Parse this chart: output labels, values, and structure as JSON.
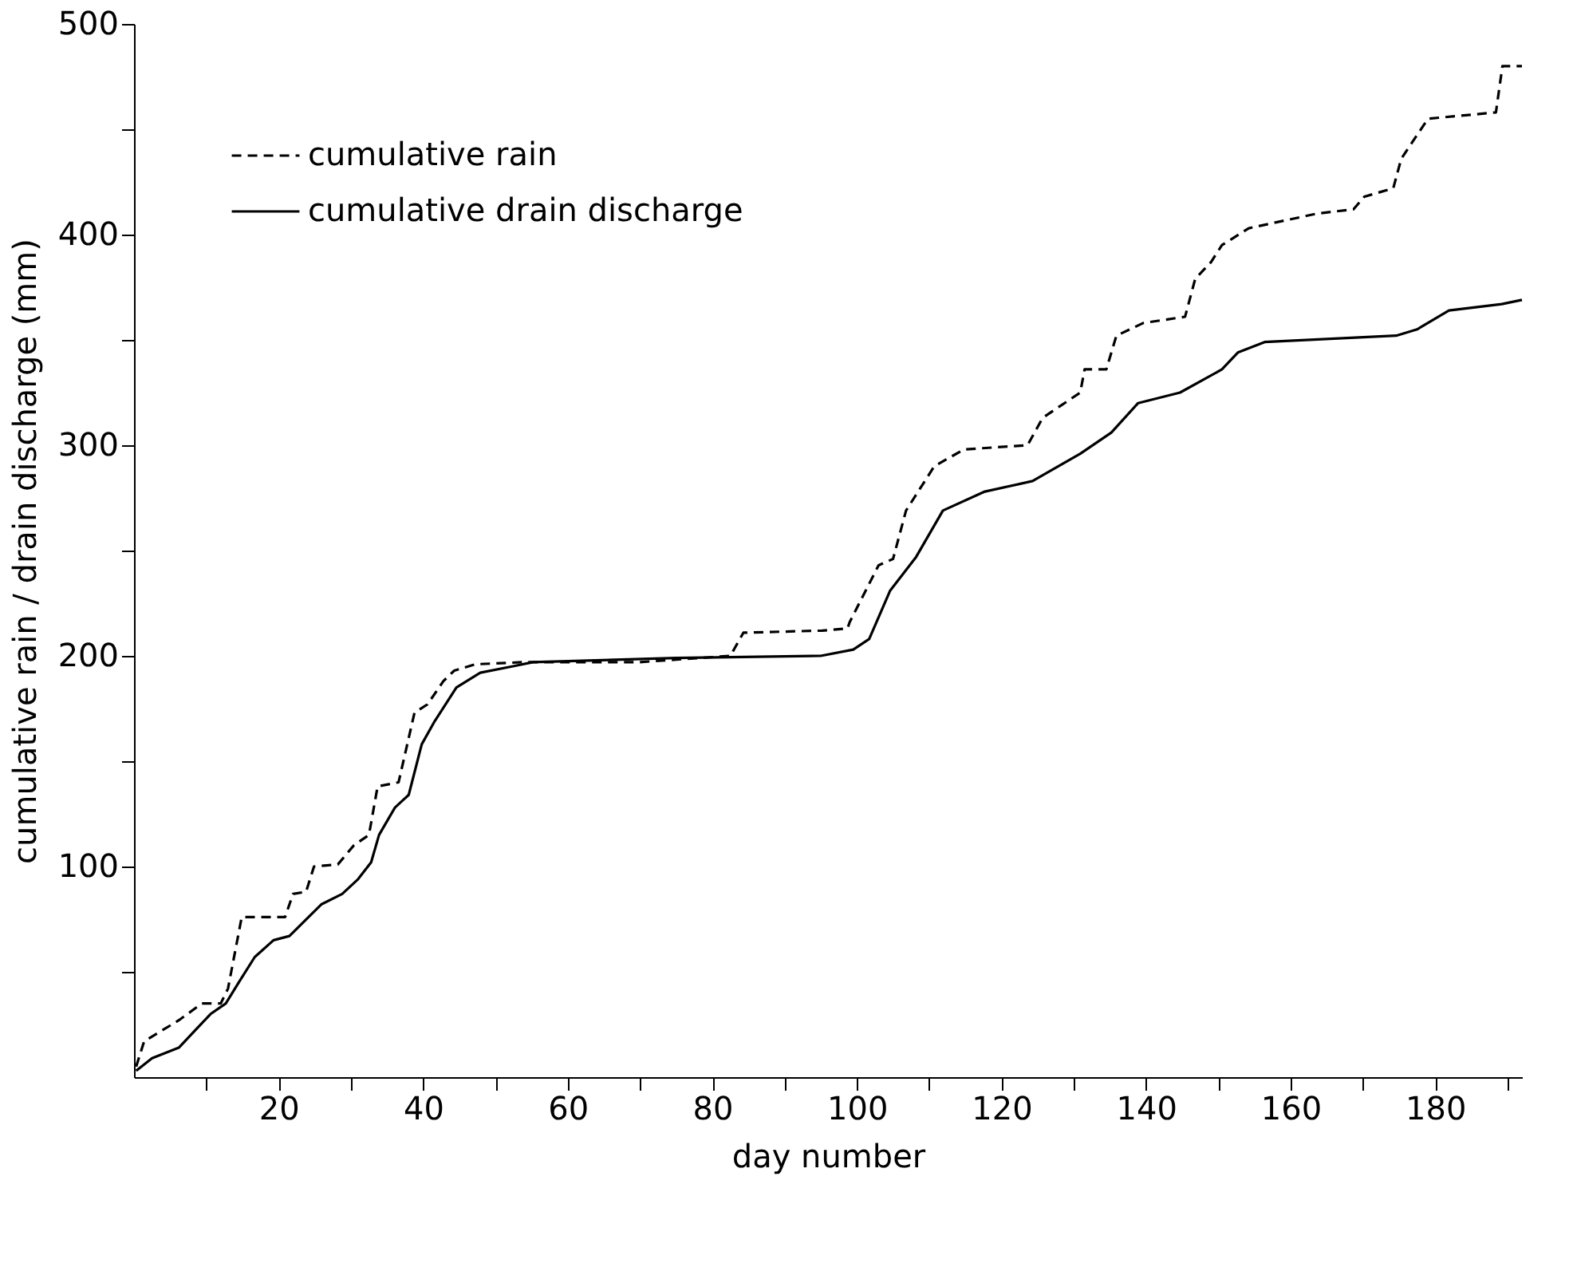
{
  "chart_data": {
    "type": "line",
    "xlabel": "day number",
    "ylabel": "cumulative rain / drain discharge (mm)",
    "xlim": [
      0,
      192
    ],
    "ylim": [
      0,
      500
    ],
    "xticks": [
      {
        "value": 10,
        "label": null
      },
      20,
      {
        "value": 30,
        "label": null
      },
      40,
      {
        "value": 50,
        "label": null
      },
      60,
      {
        "value": 70,
        "label": null
      },
      80,
      {
        "value": 90,
        "label": null
      },
      100,
      {
        "value": 110,
        "label": null
      },
      120,
      {
        "value": 130,
        "label": null
      },
      140,
      {
        "value": 150,
        "label": null
      },
      160,
      {
        "value": 170,
        "label": null
      },
      180,
      {
        "value": 190,
        "label": null
      }
    ],
    "yticks": [
      {
        "value": 50,
        "label": null
      },
      100,
      {
        "value": 150,
        "label": null
      },
      200,
      {
        "value": 250,
        "label": null
      },
      300,
      {
        "value": 350,
        "label": null
      },
      400,
      {
        "value": 450,
        "label": null
      },
      500
    ],
    "grid": false,
    "legend": "top left",
    "marker": "none",
    "series": [
      {
        "name": "cumulative rain",
        "color": "#000000",
        "line_style": "dashed",
        "x": [
          0.3,
          1.4,
          6.2,
          9.4,
          12,
          13,
          14.9,
          20.9,
          22,
          23.8,
          24.9,
          28.2,
          30.4,
          32.5,
          33.7,
          36.6,
          38.8,
          40.6,
          42.8,
          44.3,
          47.2,
          53.7,
          69.8,
          82.5,
          84.3,
          95.2,
          98.7,
          99,
          103,
          105,
          106.8,
          110.7,
          114.8,
          123.6,
          125.7,
          130.9,
          131.5,
          134.5,
          135.9,
          139.6,
          145.4,
          146.8,
          149,
          150.5,
          154.2,
          163.7,
          168.7,
          170.2,
          174.2,
          175.3,
          179,
          188.4,
          189.3,
          192
        ],
        "values": [
          5,
          17,
          27,
          35,
          35,
          42,
          76,
          76,
          87,
          88,
          100,
          101,
          110,
          115,
          138,
          140,
          173,
          177,
          188,
          193,
          196,
          197,
          197,
          200,
          211,
          212,
          213,
          216,
          243,
          246,
          269,
          290,
          298,
          300,
          313,
          325,
          336,
          336,
          352,
          358,
          361,
          379,
          387,
          395,
          403,
          410,
          412,
          418,
          422,
          436,
          455,
          458,
          480,
          480
        ]
      },
      {
        "name": "cumulative drain discharge",
        "color": "#000000",
        "line_style": "solid",
        "x": [
          0.3,
          2.5,
          6.2,
          8.4,
          10.6,
          12.7,
          14.5,
          16.7,
          19.3,
          21.5,
          25.9,
          28.8,
          31,
          32.8,
          33.9,
          36.1,
          38,
          39.8,
          41.6,
          44.6,
          47.9,
          52.3,
          55.2,
          75,
          95,
          99.5,
          101.7,
          104.6,
          108.2,
          111.9,
          117.7,
          124.3,
          130.9,
          135.2,
          138.9,
          144.7,
          150.5,
          152.7,
          156.4,
          174.6,
          177.5,
          181.9,
          189.2,
          192
        ],
        "values": [
          3,
          9,
          14,
          22,
          30,
          35,
          45,
          57,
          65,
          67,
          82,
          87,
          94,
          102,
          115,
          128,
          134,
          158,
          169,
          185,
          192,
          195,
          197,
          199,
          200,
          203,
          208,
          231,
          247,
          269,
          278,
          283,
          296,
          306,
          320,
          325,
          336,
          344,
          349,
          352,
          355,
          364,
          367,
          369
        ]
      }
    ]
  }
}
